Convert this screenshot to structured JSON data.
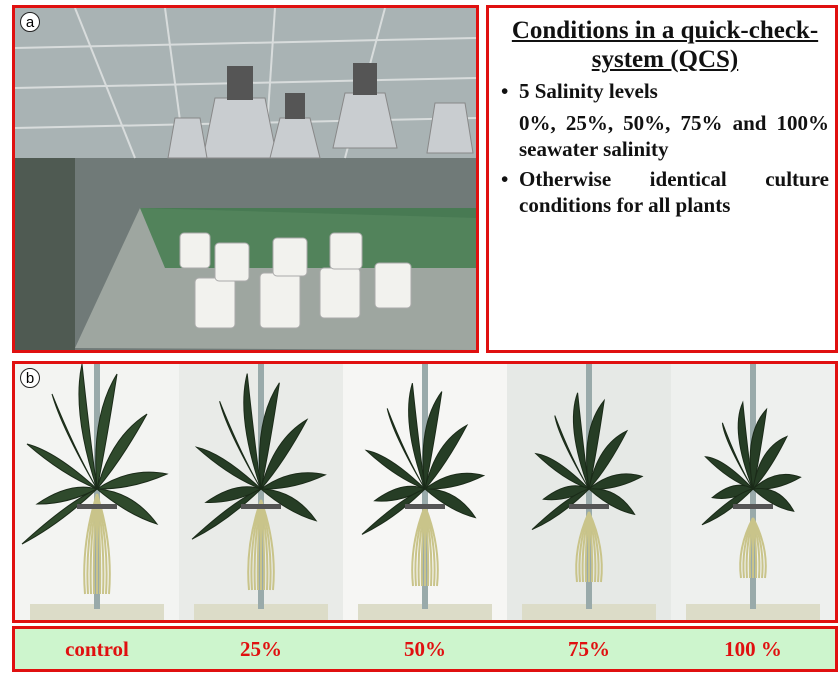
{
  "panel_a": {
    "label": "a"
  },
  "qcs": {
    "title": "Conditions in a quick-check-system (QCS)",
    "bullets": [
      {
        "text": "5 Salinity levels",
        "detail": "0%, 25%, 50%, 75% and 100% seawater salinity"
      },
      {
        "text": "Otherwise identical culture conditions for all plants"
      }
    ]
  },
  "panel_b": {
    "label": "b",
    "treatments": [
      "control",
      "25%",
      "50%",
      "75%",
      "100 %"
    ]
  }
}
